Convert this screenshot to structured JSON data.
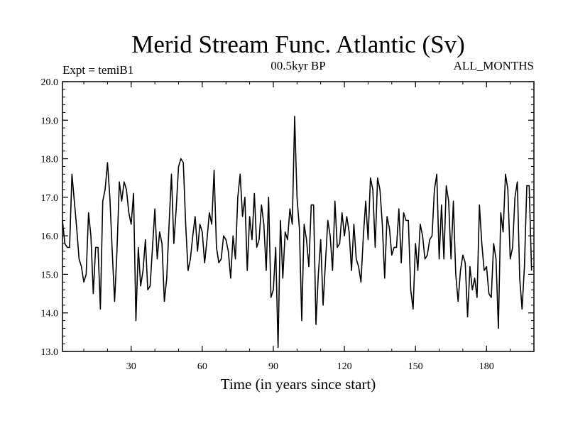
{
  "chart_data": {
    "type": "line",
    "title": "Merid Stream Func. Atlantic (Sv)",
    "subtitle_left": "Expt = temiB1",
    "subtitle_center": "00.5kyr BP",
    "subtitle_right": "ALL_MONTHS",
    "xlabel": "Time (in years since start)",
    "ylabel": "",
    "xlim": [
      1,
      200
    ],
    "ylim": [
      13.0,
      20.0
    ],
    "x_ticks": [
      30,
      60,
      90,
      120,
      150,
      180
    ],
    "x_tick_labels": [
      "30",
      "60",
      "90",
      "120",
      "150",
      "180"
    ],
    "y_ticks": [
      13.0,
      14.0,
      15.0,
      16.0,
      17.0,
      18.0,
      19.0,
      20.0
    ],
    "y_tick_labels": [
      "13.0",
      "14.0",
      "15.0",
      "16.0",
      "17.0",
      "18.0",
      "19.0",
      "20.0"
    ],
    "series": [
      {
        "name": "Merid Stream Func. Atlantic",
        "color": "#000000",
        "x_start": 1,
        "x_step": 1,
        "values": [
          16.4,
          15.8,
          15.7,
          15.7,
          17.6,
          16.9,
          16.2,
          15.4,
          15.2,
          14.8,
          15.0,
          16.6,
          16.0,
          14.5,
          15.7,
          15.7,
          14.1,
          16.9,
          17.2,
          17.9,
          17.0,
          15.6,
          14.3,
          15.6,
          17.4,
          16.9,
          17.4,
          17.2,
          16.6,
          16.3,
          17.1,
          13.8,
          15.7,
          14.7,
          15.1,
          15.9,
          14.6,
          14.7,
          15.7,
          16.7,
          15.4,
          16.1,
          15.8,
          14.3,
          14.9,
          16.3,
          17.6,
          15.8,
          16.7,
          17.8,
          18.0,
          17.9,
          16.3,
          15.1,
          15.4,
          16.0,
          16.5,
          15.6,
          16.3,
          16.1,
          15.3,
          15.9,
          16.6,
          16.3,
          17.7,
          15.7,
          15.3,
          15.4,
          16.0,
          15.9,
          15.6,
          14.9,
          16.0,
          15.4,
          17.0,
          17.6,
          16.5,
          17.0,
          15.1,
          16.5,
          15.9,
          17.1,
          15.7,
          15.9,
          16.8,
          16.3,
          15.1,
          17.0,
          14.4,
          14.6,
          15.7,
          13.1,
          16.4,
          14.9,
          16.1,
          15.9,
          16.7,
          16.3,
          19.1,
          17.0,
          16.2,
          13.8,
          16.3,
          15.9,
          15.2,
          16.8,
          16.8,
          13.7,
          15.0,
          15.9,
          14.2,
          15.3,
          16.4,
          16.0,
          15.1,
          16.9,
          15.7,
          15.8,
          16.6,
          16.0,
          16.5,
          16.1,
          15.1,
          16.3,
          15.4,
          15.2,
          14.8,
          16.0,
          16.9,
          15.9,
          17.5,
          17.2,
          15.7,
          17.5,
          17.2,
          16.3,
          14.9,
          16.5,
          16.2,
          15.5,
          15.7,
          15.7,
          16.7,
          15.3,
          16.6,
          16.4,
          16.4,
          14.6,
          14.1,
          15.8,
          15.1,
          16.3,
          16.0,
          15.4,
          15.5,
          15.9,
          16.0,
          17.2,
          17.6,
          15.4,
          16.8,
          15.4,
          17.3,
          16.9,
          15.4,
          16.9,
          15.0,
          14.3,
          15.1,
          15.5,
          15.3,
          13.9,
          15.2,
          14.6,
          14.9,
          14.4,
          16.8,
          15.8,
          15.1,
          15.2,
          14.5,
          14.4,
          15.8,
          15.4,
          13.6,
          16.6,
          16.1,
          17.6,
          17.2,
          15.4,
          15.7,
          17.0,
          17.4,
          14.9,
          14.1,
          15.2,
          17.3,
          17.3,
          15.1
        ]
      }
    ]
  }
}
